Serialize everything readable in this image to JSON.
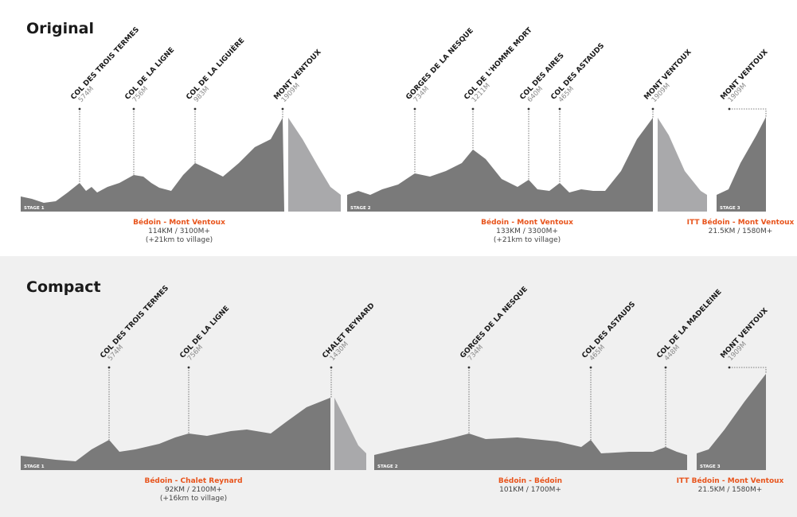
{
  "sections": [
    {
      "title": "Original",
      "stages": [
        {
          "label": "STAGE 1",
          "route": "Bédoin - Mont Ventoux",
          "distance": "114KM / 3100M+",
          "note": "(+21km to village)",
          "peaks": [
            {
              "name": "COL DES TROIS TERMES",
              "elevation": "574M"
            },
            {
              "name": "COL DE LA LIGNE",
              "elevation": "756M"
            },
            {
              "name": "COL DE LA LIGUIÈRE",
              "elevation": "983M"
            },
            {
              "name": "MONT VENTOUX",
              "elevation": "1909M"
            }
          ]
        },
        {
          "label": "STAGE 2",
          "route": "Bédoin - Mont Ventoux",
          "distance": "133KM / 3300M+",
          "note": "(+21km to village)",
          "peaks": [
            {
              "name": "GORGES DE LA NESQUE",
              "elevation": "734M"
            },
            {
              "name": "COL DE L'HOMME MORT",
              "elevation": "1211M"
            },
            {
              "name": "COL DES AIRES",
              "elevation": "640M"
            },
            {
              "name": "COL DES ASTAUDS",
              "elevation": "465M"
            },
            {
              "name": "MONT VENTOUX",
              "elevation": "1909M"
            }
          ]
        },
        {
          "label": "STAGE 3",
          "route": "ITT Bédoin - Mont Ventoux",
          "distance": "21.5KM / 1580M+",
          "peaks": [
            {
              "name": "MONT VENTOUX",
              "elevation": "1909M"
            }
          ]
        }
      ]
    },
    {
      "title": "Compact",
      "stages": [
        {
          "label": "STAGE 1",
          "route": "Bédoin - Chalet Reynard",
          "distance": "92KM / 2100M+",
          "note": "(+16km to village)",
          "peaks": [
            {
              "name": "COL DES TROIS TERMES",
              "elevation": "574M"
            },
            {
              "name": "COL DE LA LIGNE",
              "elevation": "756M"
            },
            {
              "name": "CHALET REYNARD",
              "elevation": "1430M"
            }
          ]
        },
        {
          "label": "STAGE 2",
          "route": "Bédoin - Bédoin",
          "distance": "101KM / 1700M+",
          "peaks": [
            {
              "name": "GORGES DE LA NESQUE",
              "elevation": "734M"
            },
            {
              "name": "COL DES ASTAUDS",
              "elevation": "465M"
            },
            {
              "name": "COL DE LA MADELEINE",
              "elevation": "448M"
            }
          ]
        },
        {
          "label": "STAGE 3",
          "route": "ITT Bédoin - Mont Ventoux",
          "distance": "21.5KM / 1580M+",
          "peaks": [
            {
              "name": "MONT VENTOUX",
              "elevation": "1909M"
            }
          ]
        }
      ]
    }
  ]
}
